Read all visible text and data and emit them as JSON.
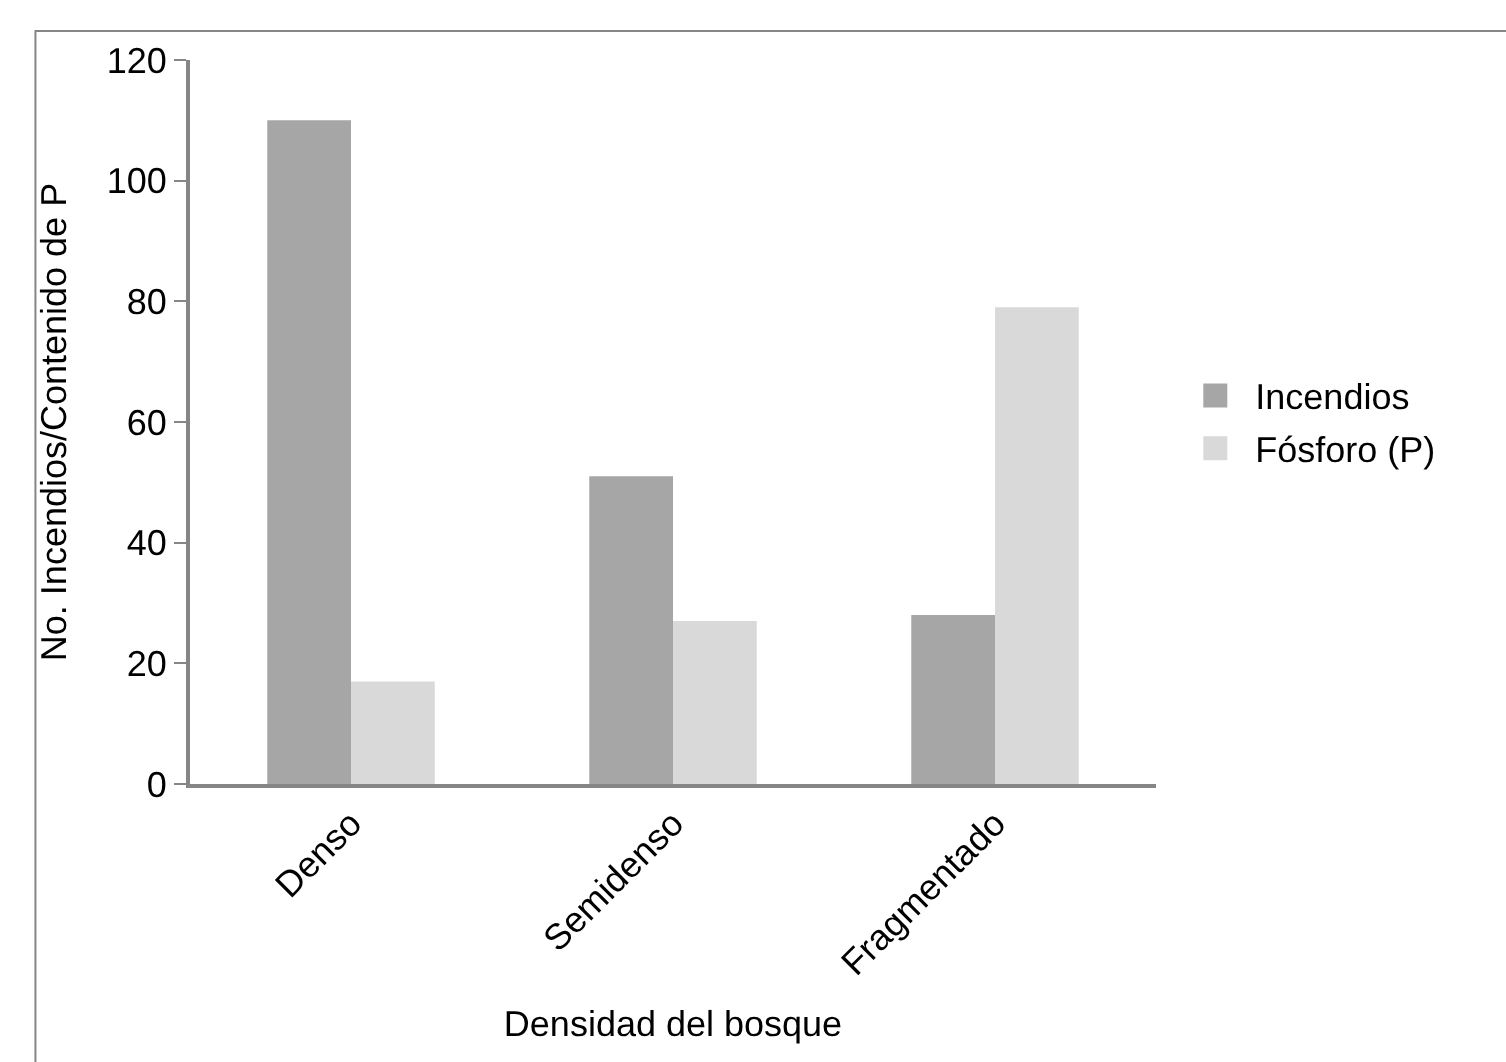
{
  "chart_data": {
    "type": "bar",
    "xlabel": "Densidad del bosque",
    "ylabel": "No. Incendios/Contenido de P",
    "categories": [
      "Denso",
      "Semidenso",
      "Fragmentado"
    ],
    "series": [
      {
        "name": "Incendios",
        "color": "#a6a6a6",
        "values": [
          110,
          51,
          28
        ]
      },
      {
        "name": "Fósforo (P)",
        "color": "#d9d9d9",
        "values": [
          17,
          27,
          79
        ]
      }
    ],
    "ylim": [
      0,
      120
    ],
    "yticks": [
      0,
      20,
      40,
      60,
      80,
      100,
      120
    ],
    "grid": false,
    "legend": "right"
  }
}
